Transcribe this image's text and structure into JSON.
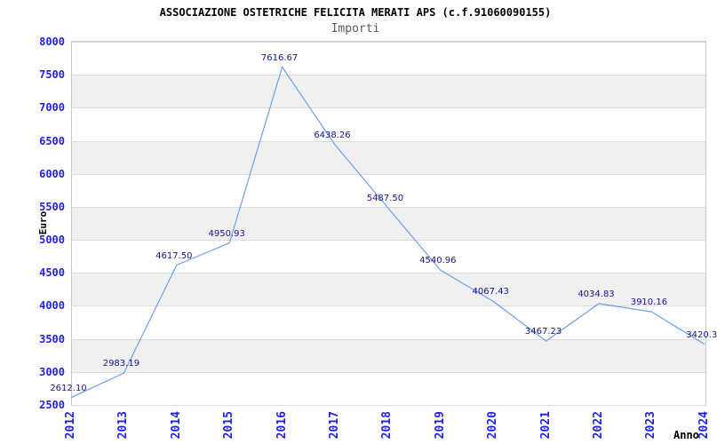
{
  "chart_data": {
    "type": "line",
    "title": "ASSOCIAZIONE OSTETRICHE FELICITA MERATI APS (c.f.91060090155)",
    "subtitle": "Importi",
    "xlabel": "Anno",
    "ylabel": "Euro",
    "categories": [
      "2012",
      "2013",
      "2014",
      "2015",
      "2016",
      "2017",
      "2018",
      "2019",
      "2020",
      "2021",
      "2022",
      "2023",
      "2024"
    ],
    "values": [
      2612.1,
      2983.19,
      4617.5,
      4950.93,
      7616.67,
      6438.26,
      5487.5,
      4540.96,
      4067.43,
      3467.23,
      4034.83,
      3910.16,
      3420.3
    ],
    "point_labels": [
      "2612.10",
      "2983.19",
      "4617.50",
      "4950.93",
      "7616.67",
      "6438.26",
      "5487.50",
      "4540.96",
      "4067.43",
      "3467.23",
      "4034.83",
      "3910.16",
      "3420.3"
    ],
    "ylim": [
      2500,
      8000
    ],
    "ytick_step": 500,
    "yticks": [
      "2500",
      "3000",
      "3500",
      "4000",
      "4500",
      "5000",
      "5500",
      "6000",
      "6500",
      "7000",
      "7500",
      "8000"
    ],
    "grid": "horizontal gridlines with alternating gray bands",
    "legend": "none",
    "colors": {
      "line": "#6d9eea",
      "axis_tick_label": "#2222dd",
      "point_label": "#14148c",
      "band_gray": "#f0f0f0",
      "gridline": "#dcdcdc",
      "plot_border": "#c9c9c9",
      "title": "#000000",
      "subtitle": "#585858",
      "background": "#ffffff"
    }
  }
}
